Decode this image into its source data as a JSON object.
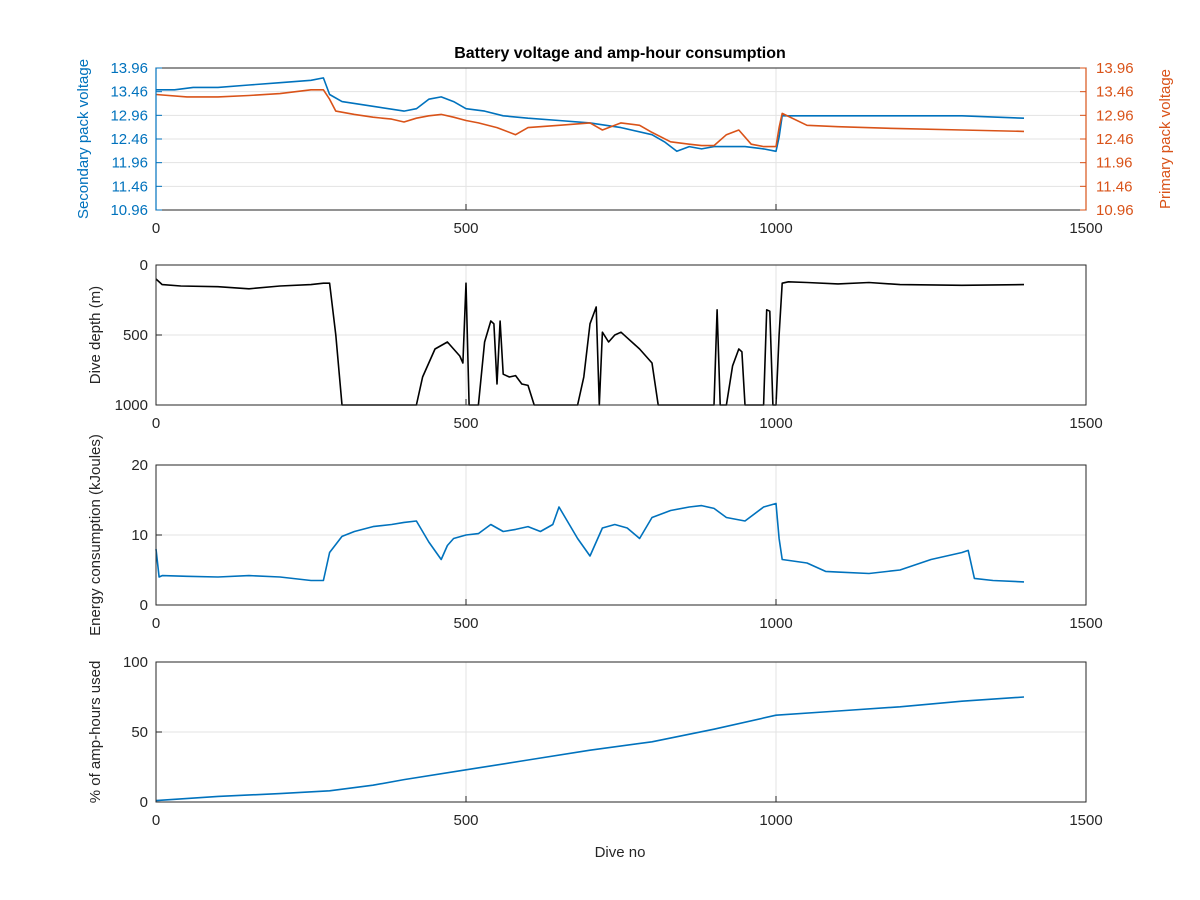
{
  "figure": {
    "title": "Battery voltage and amp-hour consumption",
    "xlabel": "Dive no"
  },
  "colors": {
    "blue": "#0072BD",
    "orange": "#D95319",
    "black": "#000000",
    "axis": "#262626",
    "grid": "#e3e3e3"
  },
  "chart_data": [
    {
      "type": "line",
      "title": "Battery voltage and amp-hour consumption",
      "xlabel": "",
      "ylabel": "Secondary pack voltage",
      "ylabel_right": "Primary pack voltage",
      "xlim": [
        0,
        1500
      ],
      "ylim": [
        10.96,
        13.96
      ],
      "xticks": [
        0,
        500,
        1000,
        1500
      ],
      "yticks": [
        10.96,
        11.46,
        11.96,
        12.46,
        12.96,
        13.46,
        13.96
      ],
      "ytick_labels": [
        "10.96",
        "11.46",
        "11.96",
        "12.46",
        "12.96",
        "13.46",
        "13.96"
      ],
      "grid": true,
      "series": [
        {
          "axis": "left",
          "color": "#0072BD",
          "x": [
            0,
            30,
            60,
            100,
            150,
            200,
            250,
            270,
            280,
            300,
            350,
            400,
            420,
            440,
            460,
            480,
            500,
            530,
            560,
            600,
            650,
            700,
            750,
            800,
            820,
            840,
            860,
            880,
            900,
            950,
            980,
            1000,
            1005,
            1010,
            1050,
            1100,
            1200,
            1300,
            1400
          ],
          "y": [
            13.5,
            13.5,
            13.55,
            13.55,
            13.6,
            13.65,
            13.7,
            13.75,
            13.4,
            13.25,
            13.15,
            13.05,
            13.1,
            13.3,
            13.35,
            13.25,
            13.1,
            13.05,
            12.95,
            12.9,
            12.85,
            12.8,
            12.7,
            12.55,
            12.4,
            12.2,
            12.3,
            12.25,
            12.3,
            12.3,
            12.25,
            12.2,
            12.5,
            12.95,
            12.95,
            12.95,
            12.95,
            12.95,
            12.9
          ]
        },
        {
          "axis": "right",
          "color": "#D95319",
          "x": [
            0,
            50,
            100,
            150,
            200,
            250,
            270,
            280,
            290,
            320,
            350,
            380,
            400,
            420,
            440,
            460,
            480,
            500,
            520,
            550,
            580,
            600,
            650,
            700,
            720,
            750,
            780,
            800,
            830,
            860,
            880,
            900,
            920,
            940,
            960,
            980,
            1000,
            1005,
            1010,
            1050,
            1100,
            1200,
            1300,
            1400
          ],
          "y": [
            13.4,
            13.35,
            13.35,
            13.38,
            13.42,
            13.5,
            13.5,
            13.3,
            13.05,
            12.98,
            12.92,
            12.88,
            12.82,
            12.9,
            12.95,
            12.98,
            12.92,
            12.85,
            12.8,
            12.7,
            12.55,
            12.7,
            12.75,
            12.8,
            12.65,
            12.8,
            12.75,
            12.6,
            12.4,
            12.35,
            12.32,
            12.32,
            12.55,
            12.65,
            12.35,
            12.3,
            12.3,
            12.7,
            13.0,
            12.75,
            12.72,
            12.68,
            12.65,
            12.62
          ]
        }
      ]
    },
    {
      "type": "line",
      "title": "",
      "xlabel": "",
      "ylabel": "Dive depth (m)",
      "xlim": [
        0,
        1500
      ],
      "ylim": [
        0,
        1000
      ],
      "y_reversed": true,
      "xticks": [
        0,
        500,
        1000,
        1500
      ],
      "yticks": [
        0,
        500,
        1000
      ],
      "ytick_labels": [
        "0",
        "500",
        "1000"
      ],
      "grid": true,
      "series": [
        {
          "color": "#000000",
          "x": [
            0,
            10,
            40,
            100,
            150,
            200,
            250,
            270,
            280,
            290,
            300,
            350,
            400,
            420,
            430,
            450,
            470,
            480,
            490,
            495,
            500,
            505,
            510,
            520,
            530,
            540,
            545,
            550,
            555,
            560,
            570,
            580,
            590,
            600,
            610,
            620,
            650,
            680,
            690,
            700,
            710,
            715,
            720,
            730,
            740,
            750,
            760,
            780,
            800,
            810,
            820,
            850,
            900,
            905,
            910,
            915,
            920,
            930,
            940,
            945,
            950,
            960,
            980,
            985,
            990,
            995,
            1000,
            1005,
            1010,
            1020,
            1050,
            1100,
            1150,
            1200,
            1300,
            1400
          ],
          "y": [
            100,
            140,
            150,
            155,
            170,
            150,
            140,
            130,
            130,
            500,
            1000,
            1000,
            1000,
            1000,
            800,
            600,
            550,
            600,
            650,
            700,
            130,
            1000,
            1000,
            1000,
            550,
            400,
            420,
            850,
            400,
            780,
            800,
            790,
            850,
            860,
            1000,
            1000,
            1000,
            1000,
            800,
            420,
            300,
            1000,
            480,
            550,
            500,
            480,
            520,
            600,
            700,
            1000,
            1000,
            1000,
            1000,
            320,
            1000,
            1000,
            1000,
            720,
            600,
            620,
            1000,
            1000,
            1000,
            320,
            330,
            1000,
            1000,
            500,
            130,
            120,
            125,
            135,
            125,
            140,
            145,
            140
          ]
        }
      ]
    },
    {
      "type": "line",
      "title": "",
      "xlabel": "",
      "ylabel": "Energy consumption (kJoules)",
      "xlim": [
        0,
        1500
      ],
      "ylim": [
        0,
        20
      ],
      "xticks": [
        0,
        500,
        1000,
        1500
      ],
      "yticks": [
        0,
        10,
        20
      ],
      "ytick_labels": [
        "0",
        "10",
        "20"
      ],
      "grid": true,
      "series": [
        {
          "color": "#0072BD",
          "x": [
            0,
            5,
            10,
            50,
            100,
            150,
            200,
            250,
            270,
            280,
            300,
            320,
            350,
            380,
            400,
            420,
            440,
            460,
            470,
            480,
            500,
            520,
            540,
            560,
            580,
            600,
            620,
            640,
            650,
            660,
            680,
            700,
            720,
            740,
            760,
            780,
            800,
            830,
            860,
            880,
            900,
            920,
            950,
            980,
            1000,
            1005,
            1010,
            1050,
            1080,
            1100,
            1150,
            1200,
            1250,
            1300,
            1310,
            1320,
            1350,
            1400
          ],
          "y": [
            8,
            4,
            4.2,
            4.1,
            4,
            4.2,
            4,
            3.5,
            3.5,
            7.5,
            9.8,
            10.5,
            11.2,
            11.5,
            11.8,
            12,
            9,
            6.5,
            8.5,
            9.5,
            10,
            10.2,
            11.5,
            10.5,
            10.8,
            11.2,
            10.5,
            11.5,
            14,
            12.5,
            9.5,
            7,
            11,
            11.5,
            11,
            9.5,
            12.5,
            13.5,
            14,
            14.2,
            13.8,
            12.5,
            12,
            14,
            14.5,
            9.5,
            6.5,
            6,
            4.8,
            4.7,
            4.5,
            5,
            6.5,
            7.5,
            7.8,
            3.8,
            3.5,
            3.3
          ]
        }
      ]
    },
    {
      "type": "line",
      "title": "",
      "xlabel": "Dive no",
      "ylabel": "% of amp-hours used",
      "xlim": [
        0,
        1500
      ],
      "ylim": [
        0,
        100
      ],
      "xticks": [
        0,
        500,
        1000,
        1500
      ],
      "yticks": [
        0,
        50,
        100
      ],
      "ytick_labels": [
        "0",
        "50",
        "100"
      ],
      "grid": true,
      "series": [
        {
          "color": "#0072BD",
          "x": [
            0,
            100,
            200,
            280,
            350,
            400,
            500,
            600,
            700,
            800,
            900,
            1000,
            1100,
            1200,
            1300,
            1400
          ],
          "y": [
            1,
            4,
            6,
            8,
            12,
            16,
            23,
            30,
            37,
            43,
            52,
            62,
            65,
            68,
            72,
            75
          ]
        }
      ]
    }
  ]
}
